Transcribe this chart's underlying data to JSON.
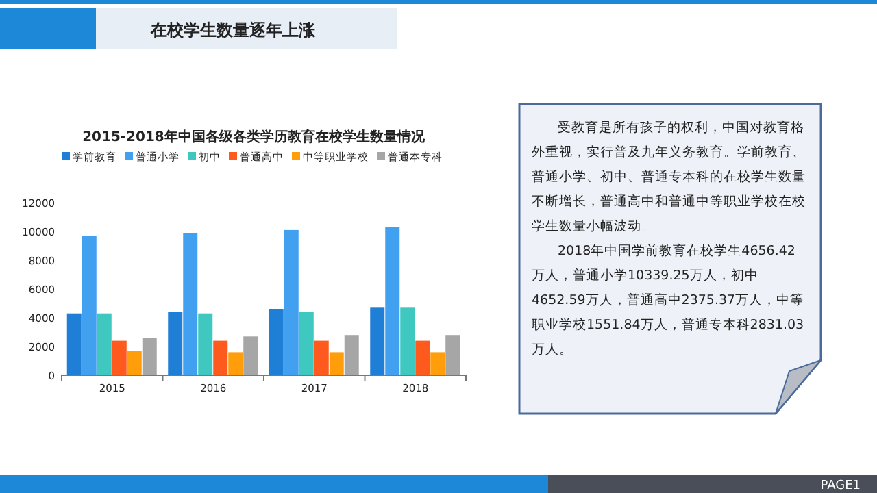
{
  "chart_data": [
    {
      "type": "bar",
      "title": "2015-2018年中国各级各类学历教育在校学生数量情况",
      "categories": [
        "2015",
        "2016",
        "2017",
        "2018"
      ],
      "series": [
        {
          "name": "学前教育",
          "color": "#1f7fd6",
          "values": [
            4300,
            4400,
            4600,
            4700
          ]
        },
        {
          "name": "普通小学",
          "color": "#42a0f0",
          "values": [
            9700,
            9900,
            10100,
            10300
          ]
        },
        {
          "name": "初中",
          "color": "#3ec8c0",
          "values": [
            4300,
            4300,
            4400,
            4700
          ]
        },
        {
          "name": "普通高中",
          "color": "#ff5a1e",
          "values": [
            2400,
            2400,
            2400,
            2400
          ]
        },
        {
          "name": "中等职业学校",
          "color": "#ff9e0a",
          "values": [
            1700,
            1600,
            1600,
            1600
          ]
        },
        {
          "name": "普通本专科",
          "color": "#a6a6a6",
          "values": [
            2600,
            2700,
            2800,
            2800
          ]
        }
      ],
      "ylim": [
        0,
        12000
      ],
      "yticks": [
        0,
        2000,
        4000,
        6000,
        8000,
        10000,
        12000
      ],
      "grid": false,
      "legend": "top"
    },
    {
      "type": "other",
      "annotations": [
        "受教育是所有孩子的权利，中国对教育格外重视，实行普及九年义务教育。学前教育、普通小学、初中、普通专本科的在校学生数量不断增长，普通高中和普通中等职业学校在校学生数量小幅波动。",
        "2018年中国学前教育在校学生4656.42万人，普通小学10339.25万人，初中4652.59万人，普通高中2375.37万人，中等职业学校1551.84万人，普通专本科2831.03万人。"
      ]
    },
    {
      "type": "other",
      "title": "在校学生数量逐年上涨",
      "annotations": [
        "PAGE1"
      ]
    }
  ]
}
